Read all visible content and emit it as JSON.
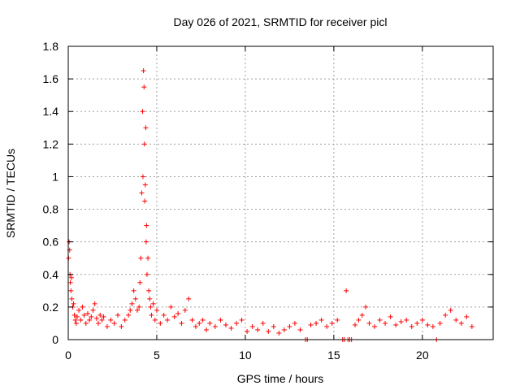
{
  "chart_data": {
    "type": "scatter",
    "title": "Day 026 of 2021, SRMTID for receiver picl",
    "xlabel": "GPS time / hours",
    "ylabel": "SRMTID / TECUs",
    "xlim": [
      0,
      24
    ],
    "ylim": [
      0,
      1.8
    ],
    "xticks": [
      0,
      5,
      10,
      15,
      20
    ],
    "xtick_labels": [
      "0",
      "5",
      "10",
      "15",
      "20"
    ],
    "yticks": [
      0,
      0.2,
      0.4,
      0.6,
      0.8,
      1.0,
      1.2,
      1.4,
      1.6,
      1.8
    ],
    "ytick_labels": [
      "0",
      "0.2",
      "0.4",
      "0.6",
      "0.8",
      "1",
      "1.2",
      "1.4",
      "1.6",
      "1.8"
    ],
    "grid": true,
    "marker": "+",
    "color": "#ff0000",
    "series": [
      {
        "name": "SRMTID",
        "x": [
          0.02,
          0.05,
          0.08,
          0.1,
          0.12,
          0.15,
          0.18,
          0.2,
          0.25,
          0.3,
          0.35,
          0.4,
          0.45,
          0.5,
          0.6,
          0.7,
          0.8,
          0.9,
          1.0,
          1.1,
          1.2,
          1.3,
          1.4,
          1.5,
          1.6,
          1.7,
          1.8,
          1.9,
          2.0,
          2.2,
          2.4,
          2.6,
          2.8,
          3.0,
          3.2,
          3.4,
          3.5,
          3.6,
          3.7,
          3.8,
          3.9,
          4.0,
          4.05,
          4.1,
          4.15,
          4.2,
          4.22,
          4.25,
          4.28,
          4.3,
          4.32,
          4.35,
          4.38,
          4.4,
          4.42,
          4.45,
          4.5,
          4.55,
          4.6,
          4.65,
          4.7,
          4.8,
          4.9,
          5.0,
          5.2,
          5.4,
          5.6,
          5.8,
          6.0,
          6.2,
          6.4,
          6.6,
          6.8,
          7.0,
          7.2,
          7.4,
          7.6,
          7.8,
          8.0,
          8.3,
          8.6,
          8.9,
          9.2,
          9.5,
          9.8,
          10.1,
          10.4,
          10.7,
          11.0,
          11.3,
          11.6,
          11.9,
          12.2,
          12.5,
          12.8,
          13.1,
          13.4,
          13.5,
          13.7,
          14.0,
          14.3,
          14.6,
          14.9,
          15.2,
          15.5,
          15.6,
          15.7,
          15.8,
          15.9,
          16.0,
          16.2,
          16.4,
          16.6,
          16.8,
          17.0,
          17.3,
          17.6,
          17.9,
          18.2,
          18.5,
          18.8,
          19.1,
          19.4,
          19.7,
          20.0,
          20.3,
          20.6,
          20.8,
          21.0,
          21.3,
          21.6,
          21.9,
          22.2,
          22.5,
          22.8
        ],
        "y": [
          0.5,
          0.6,
          0.55,
          0.4,
          0.35,
          0.3,
          0.38,
          0.25,
          0.2,
          0.22,
          0.15,
          0.12,
          0.1,
          0.14,
          0.18,
          0.12,
          0.2,
          0.15,
          0.1,
          0.16,
          0.12,
          0.14,
          0.18,
          0.22,
          0.13,
          0.1,
          0.15,
          0.12,
          0.14,
          0.08,
          0.12,
          0.1,
          0.15,
          0.08,
          0.12,
          0.15,
          0.18,
          0.22,
          0.3,
          0.25,
          0.18,
          0.2,
          0.35,
          0.5,
          0.9,
          1.4,
          1.0,
          1.65,
          1.55,
          1.2,
          0.85,
          0.95,
          1.3,
          0.6,
          0.7,
          0.4,
          0.5,
          0.3,
          0.25,
          0.2,
          0.15,
          0.22,
          0.12,
          0.18,
          0.1,
          0.15,
          0.12,
          0.2,
          0.14,
          0.16,
          0.1,
          0.18,
          0.25,
          0.12,
          0.08,
          0.1,
          0.12,
          0.06,
          0.1,
          0.08,
          0.12,
          0.09,
          0.07,
          0.1,
          0.12,
          0.05,
          0.08,
          0.06,
          0.1,
          0.05,
          0.08,
          0.04,
          0.06,
          0.08,
          0.1,
          0.06,
          0.0,
          0.0,
          0.09,
          0.1,
          0.12,
          0.08,
          0.1,
          0.12,
          0.0,
          0.0,
          0.3,
          0.0,
          0.0,
          0.0,
          0.09,
          0.12,
          0.15,
          0.2,
          0.1,
          0.08,
          0.12,
          0.1,
          0.14,
          0.09,
          0.11,
          0.12,
          0.08,
          0.1,
          0.12,
          0.09,
          0.08,
          0.0,
          0.1,
          0.15,
          0.18,
          0.12,
          0.1,
          0.14,
          0.08
        ]
      }
    ]
  }
}
